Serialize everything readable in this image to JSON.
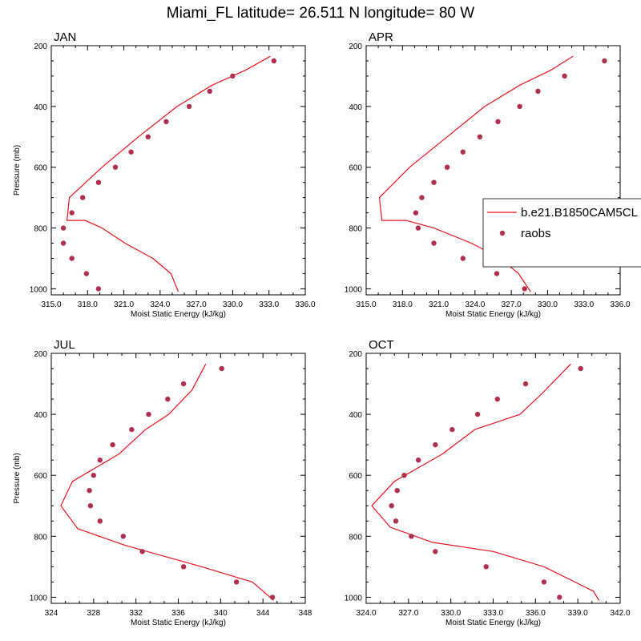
{
  "title": "Miami_FL  latitude= 26.511 N longitude= 80 W",
  "legend": {
    "placement": "right, overlapping the APR panel",
    "model_label": "b.e21.B1850CAM5CL",
    "obs_label": "raobs"
  },
  "colors": {
    "model_line": "#e8141e",
    "obs_marker": "#b0304e",
    "axes": "#000000",
    "background": "#ffffff"
  },
  "chart_data": [
    {
      "type": "line+scatter",
      "panel_label": "JAN",
      "xlabel": "Moist Static Energy (kJ/kg)",
      "ylabel": "Pressure (mb)",
      "xlim": [
        315,
        336
      ],
      "xticks": [
        315,
        318,
        321,
        324,
        327,
        330,
        333,
        336
      ],
      "xtick_labels": [
        "315.0",
        "318.0",
        "321.0",
        "324.0",
        "327.0",
        "330.0",
        "333.0",
        "336.0"
      ],
      "ylim": [
        1020,
        200
      ],
      "yticks": [
        200,
        400,
        600,
        800,
        1000
      ],
      "ytick_labels": [
        "200",
        "400",
        "600",
        "800",
        "1000"
      ],
      "model": {
        "name": "b.e21.B1850CAM5CL",
        "x": [
          325.5,
          324.9,
          323.4,
          321.1,
          319.2,
          317.8,
          316.3,
          316.5,
          319.2,
          322.2,
          325.4,
          328.3,
          331.1,
          333.1
        ],
        "p": [
          1010,
          950,
          900,
          850,
          800,
          775,
          775,
          700,
          600,
          500,
          400,
          330,
          280,
          235
        ]
      },
      "obs": {
        "name": "raobs",
        "x": [
          318.9,
          317.9,
          316.7,
          316.0,
          316.0,
          316.7,
          317.6,
          318.9,
          320.3,
          321.6,
          323.0,
          324.5,
          326.4,
          328.1,
          330.0,
          333.4
        ],
        "p": [
          1000,
          950,
          900,
          850,
          800,
          750,
          700,
          650,
          600,
          550,
          500,
          450,
          400,
          350,
          300,
          250
        ]
      }
    },
    {
      "type": "line+scatter",
      "panel_label": "APR",
      "xlabel": "Moist Static Energy (kJ/kg)",
      "ylabel": "",
      "xlim": [
        315,
        336
      ],
      "xticks": [
        315,
        318,
        321,
        324,
        327,
        330,
        333,
        336
      ],
      "xtick_labels": [
        "315.0",
        "318.0",
        "321.0",
        "324.0",
        "327.0",
        "330.0",
        "333.0",
        "336.0"
      ],
      "ylim": [
        1020,
        200
      ],
      "yticks": [
        200,
        400,
        600,
        800,
        1000
      ],
      "ytick_labels": [
        "200",
        "400",
        "600",
        "800",
        "1000"
      ],
      "model": {
        "name": "b.e21.B1850CAM5CL",
        "x": [
          328.6,
          327.6,
          326.1,
          323.7,
          320.6,
          318.3,
          316.3,
          316.1,
          318.6,
          321.7,
          324.8,
          327.7,
          330.3,
          332.1
        ],
        "p": [
          1010,
          950,
          900,
          850,
          800,
          775,
          775,
          700,
          600,
          500,
          400,
          330,
          280,
          235
        ]
      },
      "obs": {
        "name": "raobs",
        "x": [
          328.1,
          325.8,
          323.0,
          320.6,
          319.3,
          319.1,
          319.6,
          320.6,
          321.7,
          323.0,
          324.4,
          325.9,
          327.7,
          329.2,
          331.4,
          334.7
        ],
        "p": [
          1000,
          950,
          900,
          850,
          800,
          750,
          700,
          650,
          600,
          550,
          500,
          450,
          400,
          350,
          300,
          250
        ]
      }
    },
    {
      "type": "line+scatter",
      "panel_label": "JUL",
      "xlabel": "Moist Static Energy (kJ/kg)",
      "ylabel": "Pressure (mb)",
      "xlim": [
        324,
        348
      ],
      "xticks": [
        324,
        328,
        332,
        336,
        340,
        344,
        348
      ],
      "xtick_labels": [
        "324",
        "328",
        "332",
        "336",
        "340",
        "344",
        "348"
      ],
      "ylim": [
        1020,
        200
      ],
      "yticks": [
        200,
        400,
        600,
        800,
        1000
      ],
      "ytick_labels": [
        "200",
        "400",
        "600",
        "800",
        "1000"
      ],
      "model": {
        "name": "b.e21.B1850CAM5CL",
        "x": [
          345.0,
          343.0,
          338.2,
          331.0,
          326.5,
          324.9,
          326.0,
          330.4,
          332.9,
          335.1,
          337.3,
          338.6
        ],
        "p": [
          1010,
          950,
          900,
          830,
          775,
          700,
          620,
          530,
          450,
          400,
          320,
          235
        ]
      },
      "obs": {
        "name": "raobs",
        "x": [
          344.9,
          341.5,
          336.5,
          332.6,
          330.8,
          328.6,
          327.7,
          327.6,
          328.0,
          328.6,
          329.8,
          331.6,
          333.2,
          335.0,
          336.5,
          340.1
        ],
        "p": [
          1000,
          950,
          900,
          850,
          800,
          750,
          700,
          650,
          600,
          550,
          500,
          450,
          400,
          350,
          300,
          250
        ]
      }
    },
    {
      "type": "line+scatter",
      "panel_label": "OCT",
      "xlabel": "Moist Static Energy (kJ/kg)",
      "ylabel": "",
      "xlim": [
        324,
        342
      ],
      "xticks": [
        324,
        327,
        330,
        333,
        336,
        339,
        342
      ],
      "xtick_labels": [
        "324.0",
        "327.0",
        "330.0",
        "333.0",
        "336.0",
        "339.0",
        "342.0"
      ],
      "ylim": [
        1020,
        200
      ],
      "yticks": [
        200,
        400,
        600,
        800,
        1000
      ],
      "ytick_labels": [
        "200",
        "400",
        "600",
        "800",
        "1000"
      ],
      "model": {
        "name": "b.e21.B1850CAM5CL",
        "x": [
          340.5,
          340.1,
          338.8,
          336.6,
          333.0,
          328.7,
          325.7,
          324.4,
          326.0,
          329.4,
          331.7,
          334.9,
          336.5,
          338.5
        ],
        "p": [
          1010,
          980,
          950,
          900,
          850,
          820,
          770,
          700,
          620,
          530,
          450,
          400,
          330,
          235
        ]
      },
      "obs": {
        "name": "raobs",
        "x": [
          337.7,
          336.6,
          332.5,
          328.9,
          327.2,
          326.1,
          325.8,
          326.2,
          326.7,
          327.7,
          328.9,
          330.1,
          331.9,
          333.3,
          335.3,
          339.2
        ],
        "p": [
          1000,
          950,
          900,
          850,
          800,
          750,
          700,
          650,
          600,
          550,
          500,
          450,
          400,
          350,
          300,
          250
        ]
      }
    }
  ]
}
